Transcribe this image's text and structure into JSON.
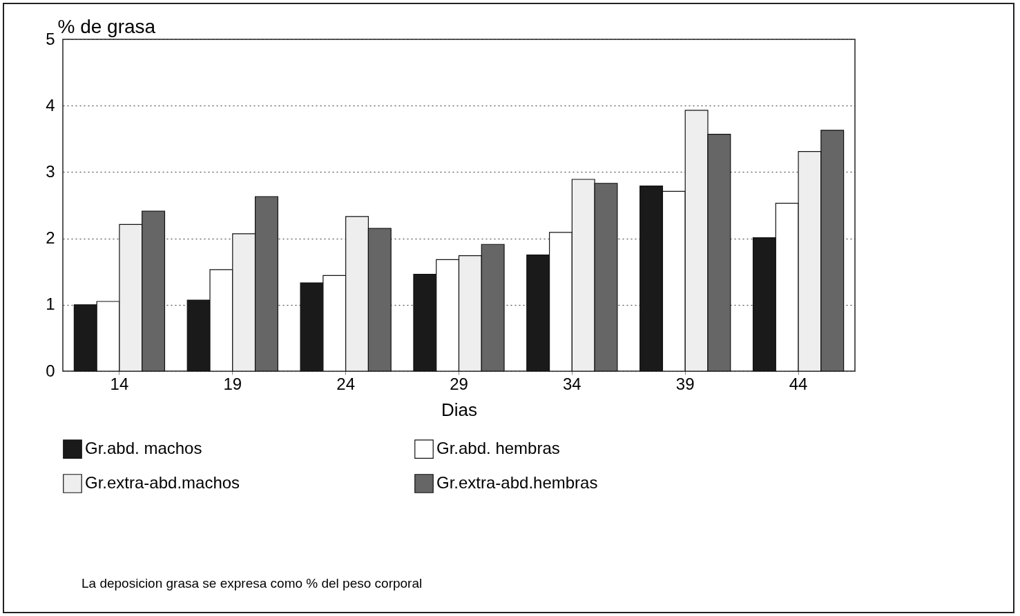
{
  "chart_data": {
    "type": "bar",
    "ylabel": "% de grasa",
    "xlabel": "Dias",
    "categories": [
      "14",
      "19",
      "24",
      "29",
      "34",
      "39",
      "44"
    ],
    "series": [
      {
        "name": "Gr.abd. machos",
        "color": "#1a1a1a",
        "values": [
          1.0,
          1.07,
          1.33,
          1.46,
          1.75,
          2.79,
          2.01
        ]
      },
      {
        "name": "Gr.abd. hembras",
        "color": "#ffffff",
        "values": [
          1.05,
          1.53,
          1.44,
          1.68,
          2.09,
          2.71,
          2.53
        ]
      },
      {
        "name": "Gr.extra-abd.machos",
        "color": "#eeeeee",
        "values": [
          2.21,
          2.07,
          2.33,
          1.74,
          2.89,
          3.93,
          3.31
        ]
      },
      {
        "name": "Gr.extra-abd.hembras",
        "color": "#666666",
        "values": [
          2.41,
          2.63,
          2.15,
          1.91,
          2.83,
          3.57,
          3.63
        ]
      }
    ],
    "ylim": [
      0,
      5
    ],
    "yticks": [
      0,
      1,
      2,
      3,
      4,
      5
    ],
    "grid": "y",
    "legend": "bottom",
    "annotations": [
      "La deposicion grasa se expresa como % del peso corporal"
    ]
  }
}
